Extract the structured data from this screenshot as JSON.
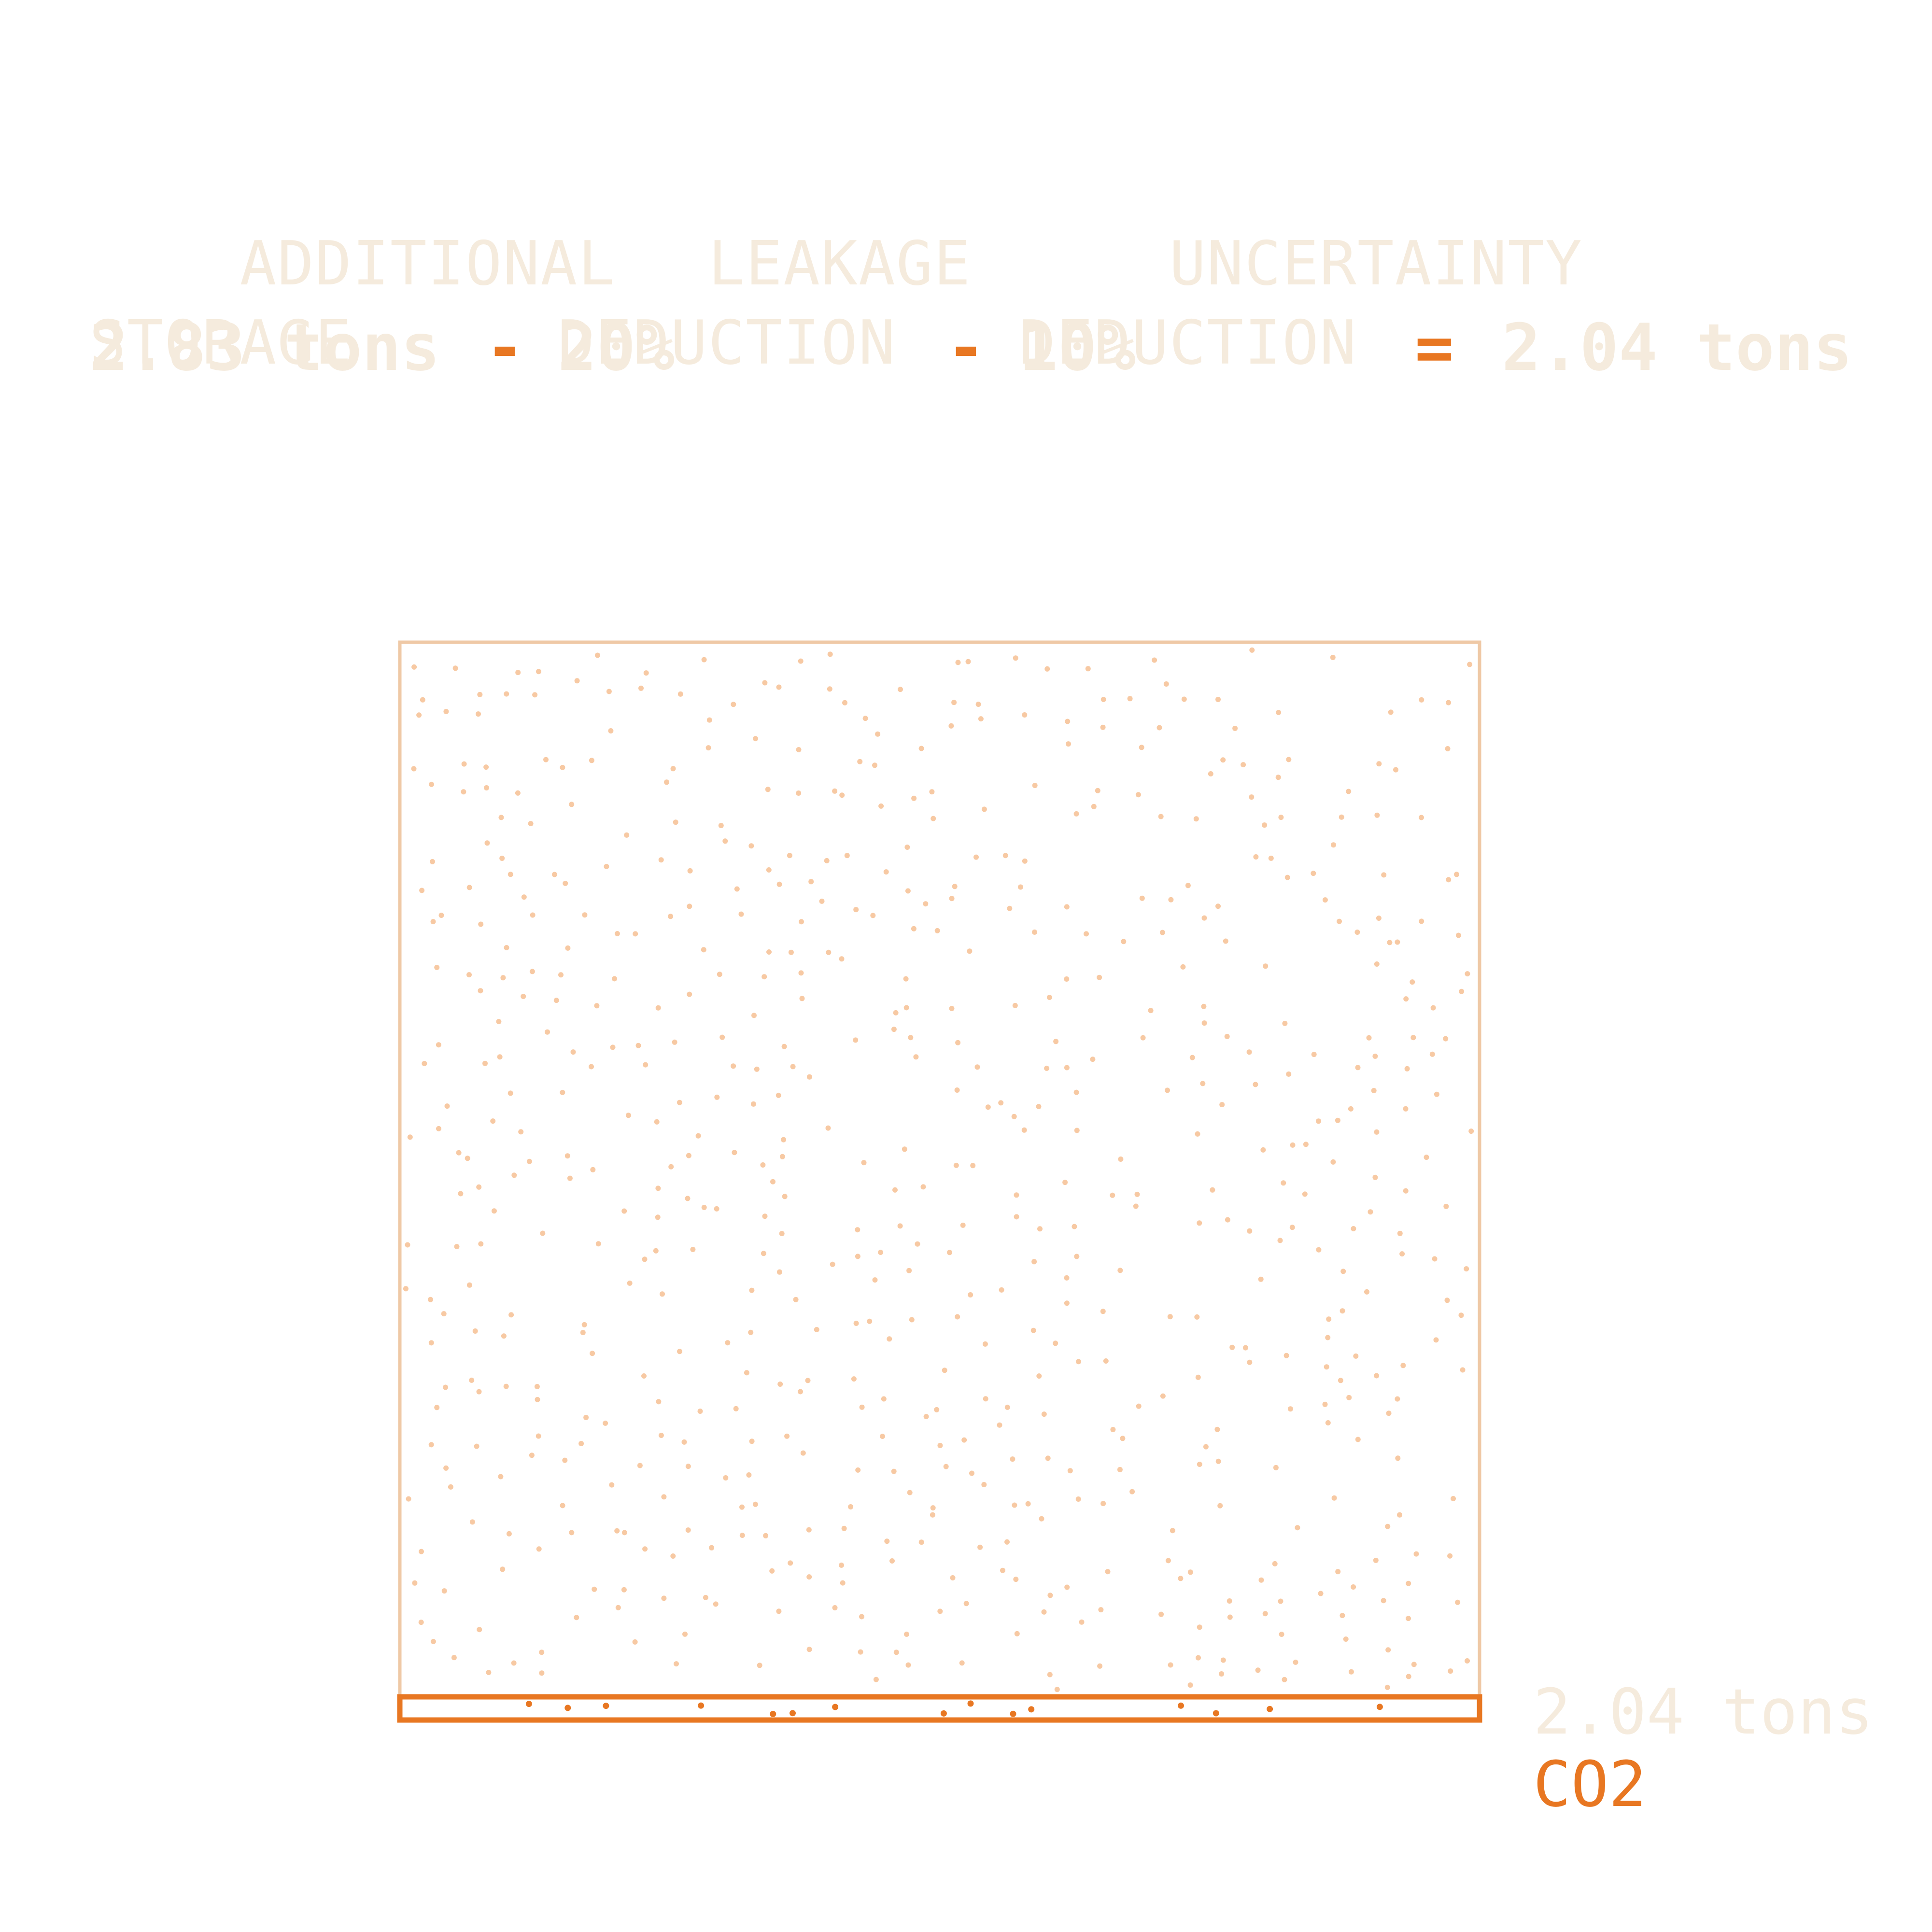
{
  "equation": {
    "additional_storage": {
      "label_line1": "ADDITIONAL",
      "label_line2": "STORAGE",
      "value": "2.83 tons"
    },
    "leakage": {
      "label_line1": "LEAKAGE",
      "label_line2": "DEDUCTION",
      "value": "20%"
    },
    "uncertainty": {
      "label_line1": "UNCERTAINTY",
      "label_line2": "DEDUCTION",
      "value": "10%"
    },
    "minus_1": "-",
    "minus_2": "-",
    "equals": "=",
    "result": "2.04 tons"
  },
  "diagram": {
    "net_value_label": "2.04 tons",
    "gas_label": "CO2",
    "total_storage_tons": 2.83,
    "net_storage_tons": 2.04,
    "net_band_fraction": 0.02
  },
  "colors": {
    "accent": "#e87722",
    "muted_text": "#f5ebdd",
    "outline": "#efc9a6",
    "dots": "#f7c9a3",
    "background": "#ffffff"
  }
}
